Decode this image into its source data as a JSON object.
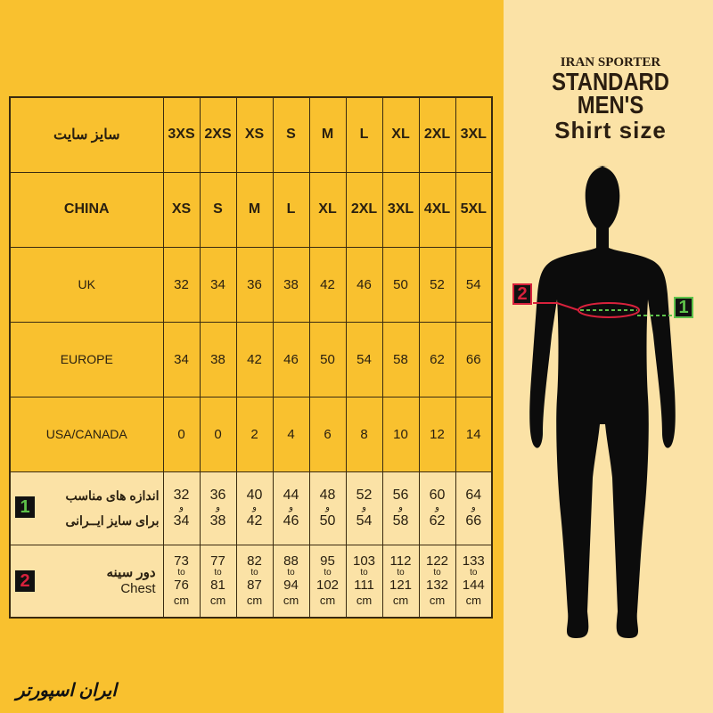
{
  "title": {
    "brand": "IRAN SPORTER",
    "line1": "STANDARD",
    "line2": "MEN'S",
    "line3": "Shirt size"
  },
  "table": {
    "rows": [
      {
        "label": "سایز سایت",
        "values": [
          "3XS",
          "2XS",
          "XS",
          "S",
          "M",
          "L",
          "XL",
          "2XL",
          "3XL"
        ]
      },
      {
        "label": "CHINA",
        "values": [
          "XS",
          "S",
          "M",
          "L",
          "XL",
          "2XL",
          "3XL",
          "4XL",
          "5XL"
        ]
      },
      {
        "label": "UK",
        "values": [
          "32",
          "34",
          "36",
          "38",
          "42",
          "46",
          "50",
          "52",
          "54"
        ]
      },
      {
        "label": "EUROPE",
        "values": [
          "34",
          "38",
          "42",
          "46",
          "50",
          "54",
          "58",
          "62",
          "66"
        ]
      },
      {
        "label": "USA/CANADA",
        "values": [
          "0",
          "0",
          "2",
          "4",
          "6",
          "8",
          "10",
          "12",
          "14"
        ]
      }
    ],
    "iran": {
      "badge": "1",
      "label1": "اندازه های مناسب",
      "label2": "برای سایز ایــرانی",
      "sep": "و",
      "from": [
        "32",
        "36",
        "40",
        "44",
        "48",
        "52",
        "56",
        "60",
        "64"
      ],
      "to": [
        "34",
        "38",
        "42",
        "46",
        "50",
        "54",
        "58",
        "62",
        "66"
      ]
    },
    "chest": {
      "badge": "2",
      "label_fa": "دور سینه",
      "label_en": "Chest",
      "sep": "to",
      "unit": "cm",
      "from": [
        "73",
        "77",
        "82",
        "88",
        "95",
        "103",
        "112",
        "122",
        "133"
      ],
      "to": [
        "76",
        "81",
        "87",
        "94",
        "102",
        "111",
        "121",
        "132",
        "144"
      ]
    }
  },
  "figure": {
    "marker1": "1",
    "marker2": "2"
  },
  "logo": {
    "text": "ایران اسپورتر"
  },
  "colors": {
    "orange": "#f9c12f",
    "cream": "#fbe2a6",
    "green": "#5ec24a",
    "red": "#d8213c"
  }
}
